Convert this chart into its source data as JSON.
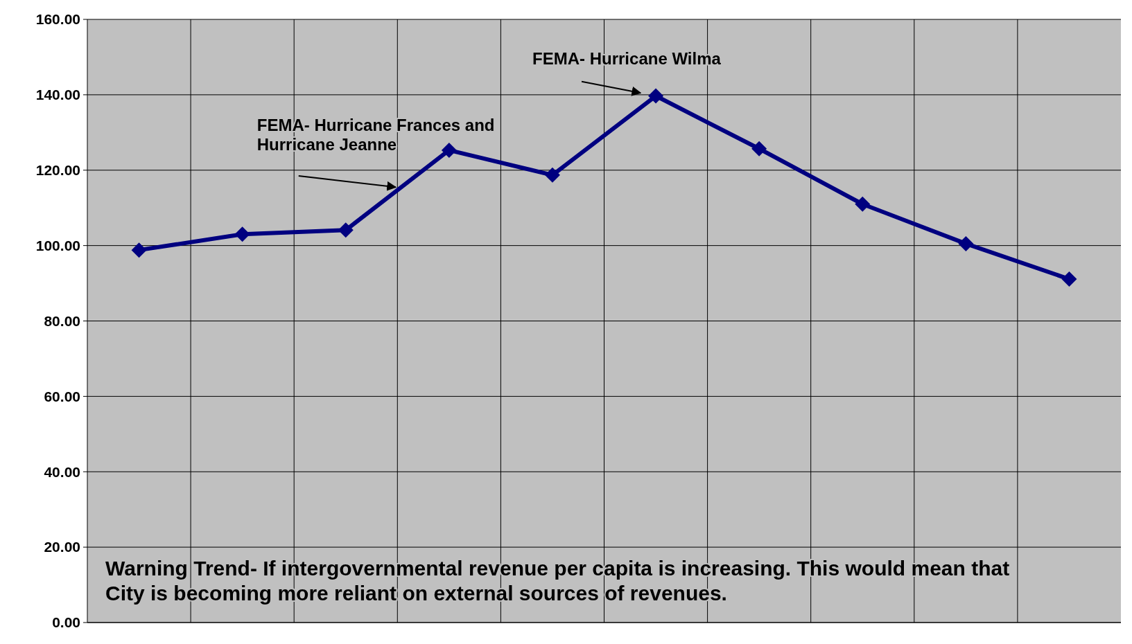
{
  "chart_data": {
    "type": "line",
    "categories": [
      null,
      null,
      null,
      null,
      null,
      null,
      null,
      null,
      null,
      null
    ],
    "series": [
      {
        "color": "#000080",
        "values": [
          98.8,
          103.0,
          104.1,
          125.3,
          118.7,
          139.7,
          125.7,
          111.0,
          100.5,
          91.1
        ]
      }
    ],
    "ylim": [
      0,
      160
    ],
    "yticks": [
      {
        "value": 0,
        "label": "0.00"
      },
      {
        "value": 20,
        "label": "20.00"
      },
      {
        "value": 40,
        "label": "40.00"
      },
      {
        "value": 60,
        "label": "60.00"
      },
      {
        "value": 80,
        "label": "80.00"
      },
      {
        "value": 100,
        "label": "100.00"
      },
      {
        "value": 120,
        "label": "120.00"
      },
      {
        "value": 140,
        "label": "140.00"
      },
      {
        "value": 160,
        "label": "160.00"
      }
    ],
    "grid": true,
    "marker": "diamond",
    "line_style": "solid",
    "annotations": [
      "FEMA- Hurricane Frances and\nHurricane Jeanne",
      "FEMA- Hurricane Wilma",
      "Warning Trend- If intergovernmental revenue per capita is increasing.  This would mean that\nCity is becoming more reliant on external sources of revenues."
    ]
  }
}
